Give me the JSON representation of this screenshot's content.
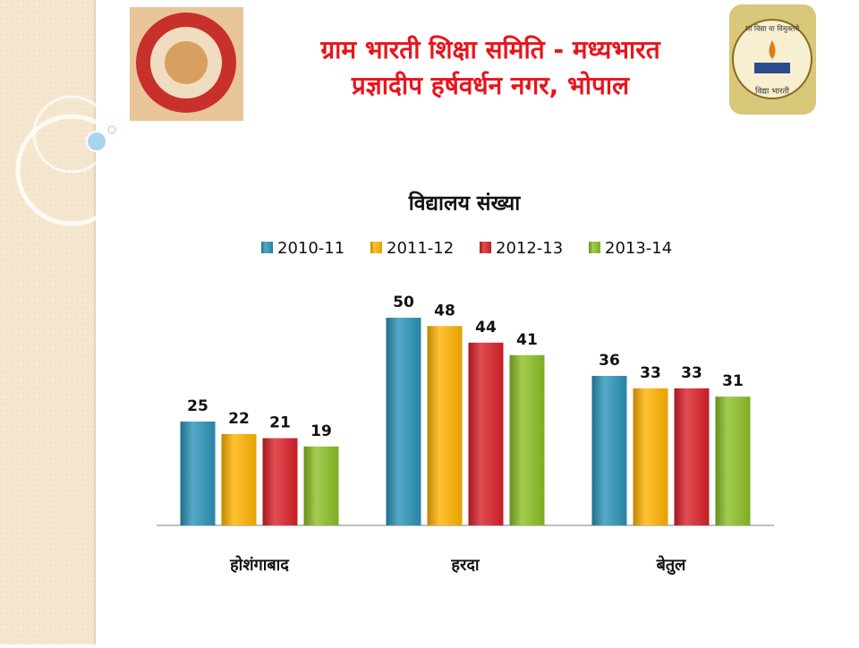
{
  "header": {
    "line1": "ग्राम भारती शिक्षा समिति - मध्यभारत",
    "line2": "प्रज्ञादीप हर्षवर्धन नगर, भोपाल"
  },
  "logo_right": {
    "top": "सा विद्या या विमुक्तये",
    "bottom": "विद्या भारती"
  },
  "chart_data": {
    "type": "bar",
    "title": "विद्यालय संख्या",
    "categories": [
      "होशंगाबाद",
      "हरदा",
      "बेतुल"
    ],
    "series": [
      {
        "name": "2010-11",
        "color": "#2a93b8",
        "values": [
          25,
          50,
          36
        ]
      },
      {
        "name": "2011-12",
        "color": "#ffb300",
        "values": [
          22,
          48,
          33
        ]
      },
      {
        "name": "2012-13",
        "color": "#d92128",
        "values": [
          21,
          44,
          33
        ]
      },
      {
        "name": "2013-14",
        "color": "#8cbf26",
        "values": [
          19,
          41,
          31
        ]
      }
    ],
    "legend": "top"
  }
}
